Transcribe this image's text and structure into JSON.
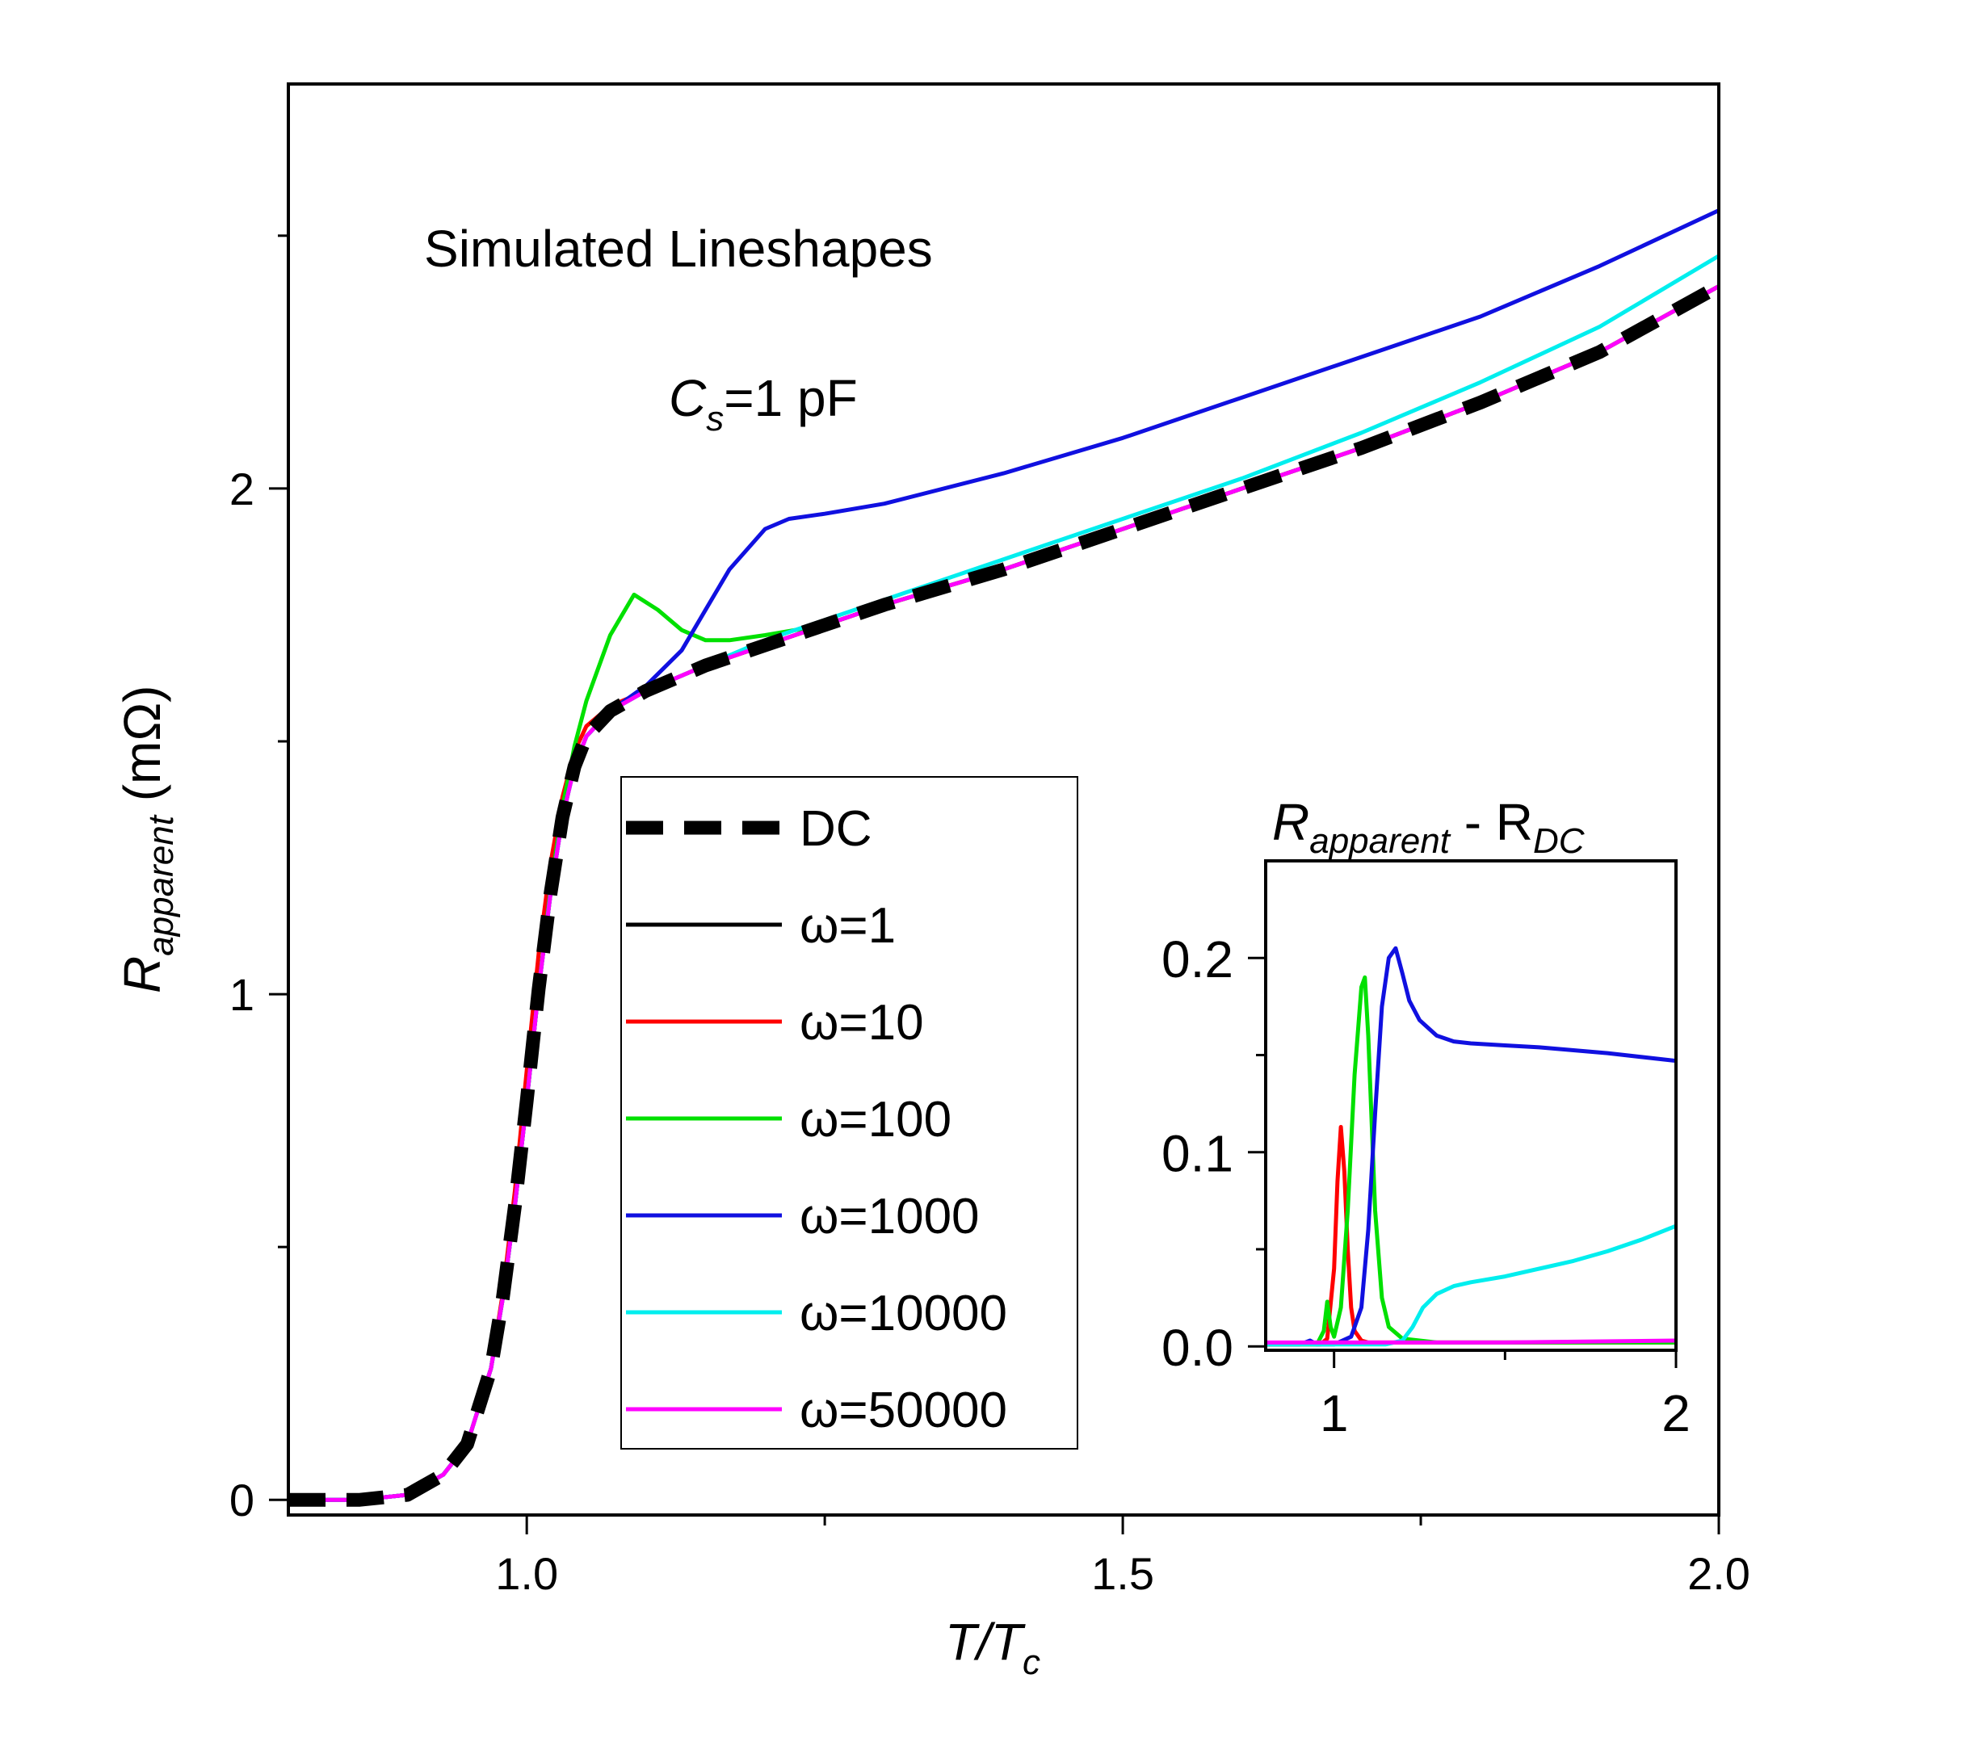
{
  "chart_data": [
    {
      "type": "line",
      "title": "Simulated Lineshapes",
      "annotation_base": "C",
      "annotation_sub": "s",
      "annotation_rest": "=1 pF",
      "xlabel_main": "T/T",
      "xlabel_sub": "c",
      "ylabel_main": "R",
      "ylabel_sub": "apparent",
      "ylabel_unit": " (mΩ)",
      "xlim": [
        0.8,
        2.0
      ],
      "ylim": [
        -0.03,
        2.8
      ],
      "x_ticks": [
        1.0,
        1.5,
        2.0
      ],
      "x_tick_labels": [
        "1.0",
        "1.5",
        "2.0"
      ],
      "y_ticks": [
        0,
        1,
        2
      ],
      "y_tick_labels": [
        "0",
        "1",
        "2"
      ],
      "legend_position": "center",
      "series": [
        {
          "name": "DC",
          "label": "DC",
          "color": "#000000",
          "style": "dashed",
          "x": [
            0.8,
            0.86,
            0.9,
            0.93,
            0.95,
            0.97,
            0.98,
            0.99,
            1.0,
            1.01,
            1.02,
            1.03,
            1.04,
            1.05,
            1.07,
            1.1,
            1.15,
            1.2,
            1.3,
            1.4,
            1.5,
            1.6,
            1.7,
            1.8,
            1.9,
            2.0
          ],
          "y": [
            0.0,
            0.0,
            0.01,
            0.05,
            0.11,
            0.26,
            0.4,
            0.58,
            0.79,
            1.01,
            1.2,
            1.35,
            1.45,
            1.51,
            1.56,
            1.6,
            1.65,
            1.69,
            1.77,
            1.84,
            1.92,
            2.0,
            2.08,
            2.17,
            2.27,
            2.4
          ]
        },
        {
          "name": "ω=1",
          "label": "ω=1",
          "color": "#000000",
          "style": "solid",
          "x": [
            0.8,
            0.86,
            0.9,
            0.93,
            0.95,
            0.97,
            0.98,
            0.99,
            1.0,
            1.01,
            1.02,
            1.03,
            1.04,
            1.05,
            1.07,
            1.1,
            1.15,
            1.2,
            1.3,
            1.4,
            1.5,
            1.6,
            1.7,
            1.8,
            1.9,
            2.0
          ],
          "y": [
            0.0,
            0.0,
            0.01,
            0.05,
            0.11,
            0.26,
            0.4,
            0.58,
            0.79,
            1.01,
            1.2,
            1.35,
            1.45,
            1.51,
            1.56,
            1.6,
            1.65,
            1.69,
            1.77,
            1.84,
            1.92,
            2.0,
            2.08,
            2.17,
            2.27,
            2.4
          ]
        },
        {
          "name": "ω=10",
          "label": "ω=10",
          "color": "#ff0000",
          "style": "solid",
          "x": [
            0.8,
            0.86,
            0.9,
            0.93,
            0.95,
            0.97,
            0.98,
            0.99,
            1.0,
            1.01,
            1.02,
            1.03,
            1.04,
            1.05,
            1.07,
            1.1,
            1.15,
            1.2,
            1.3,
            1.4,
            1.5,
            1.6,
            1.7,
            1.8,
            1.9,
            2.0
          ],
          "y": [
            0.0,
            0.0,
            0.01,
            0.05,
            0.11,
            0.26,
            0.41,
            0.61,
            0.85,
            1.08,
            1.26,
            1.39,
            1.48,
            1.53,
            1.57,
            1.6,
            1.65,
            1.69,
            1.77,
            1.84,
            1.92,
            2.0,
            2.08,
            2.17,
            2.27,
            2.4
          ]
        },
        {
          "name": "ω=100",
          "label": "ω=100",
          "color": "#00e000",
          "style": "solid",
          "x": [
            0.8,
            0.86,
            0.9,
            0.93,
            0.95,
            0.97,
            0.98,
            0.99,
            1.0,
            1.01,
            1.02,
            1.03,
            1.04,
            1.05,
            1.07,
            1.09,
            1.11,
            1.13,
            1.15,
            1.17,
            1.2,
            1.25,
            1.3,
            1.4,
            1.5,
            1.6,
            1.7,
            1.8,
            1.9,
            2.0
          ],
          "y": [
            0.0,
            0.0,
            0.01,
            0.05,
            0.11,
            0.26,
            0.4,
            0.58,
            0.79,
            1.01,
            1.21,
            1.37,
            1.49,
            1.58,
            1.71,
            1.79,
            1.76,
            1.72,
            1.7,
            1.7,
            1.71,
            1.73,
            1.77,
            1.84,
            1.92,
            2.0,
            2.08,
            2.17,
            2.27,
            2.4
          ]
        },
        {
          "name": "ω=1000",
          "label": "ω=1000",
          "color": "#1010e0",
          "style": "solid",
          "x": [
            0.8,
            0.86,
            0.9,
            0.93,
            0.95,
            0.97,
            0.98,
            0.99,
            1.0,
            1.01,
            1.02,
            1.03,
            1.04,
            1.05,
            1.07,
            1.1,
            1.13,
            1.15,
            1.17,
            1.2,
            1.22,
            1.25,
            1.3,
            1.4,
            1.5,
            1.6,
            1.7,
            1.8,
            1.9,
            2.0
          ],
          "y": [
            0.0,
            0.0,
            0.01,
            0.05,
            0.11,
            0.26,
            0.4,
            0.58,
            0.79,
            1.01,
            1.2,
            1.35,
            1.45,
            1.51,
            1.56,
            1.61,
            1.68,
            1.76,
            1.84,
            1.92,
            1.94,
            1.95,
            1.97,
            2.03,
            2.1,
            2.18,
            2.26,
            2.34,
            2.44,
            2.55
          ]
        },
        {
          "name": "ω=10000",
          "label": "ω=10000",
          "color": "#00eeee",
          "style": "solid",
          "x": [
            0.8,
            0.86,
            0.9,
            0.93,
            0.95,
            0.97,
            0.98,
            0.99,
            1.0,
            1.01,
            1.02,
            1.03,
            1.04,
            1.05,
            1.07,
            1.1,
            1.15,
            1.2,
            1.3,
            1.4,
            1.5,
            1.6,
            1.7,
            1.8,
            1.9,
            2.0
          ],
          "y": [
            0.0,
            0.0,
            0.01,
            0.05,
            0.11,
            0.26,
            0.4,
            0.58,
            0.79,
            1.01,
            1.2,
            1.35,
            1.45,
            1.51,
            1.56,
            1.6,
            1.65,
            1.7,
            1.78,
            1.86,
            1.94,
            2.02,
            2.11,
            2.21,
            2.32,
            2.46
          ]
        },
        {
          "name": "ω=50000",
          "label": "ω=50000",
          "color": "#ff00ff",
          "style": "solid",
          "x": [
            0.8,
            0.86,
            0.9,
            0.93,
            0.95,
            0.97,
            0.98,
            0.99,
            1.0,
            1.01,
            1.02,
            1.03,
            1.04,
            1.05,
            1.07,
            1.1,
            1.15,
            1.2,
            1.3,
            1.4,
            1.5,
            1.6,
            1.7,
            1.8,
            1.9,
            2.0
          ],
          "y": [
            0.0,
            0.0,
            0.01,
            0.05,
            0.11,
            0.26,
            0.4,
            0.58,
            0.79,
            1.01,
            1.2,
            1.35,
            1.45,
            1.51,
            1.56,
            1.6,
            1.65,
            1.69,
            1.77,
            1.84,
            1.92,
            2.0,
            2.08,
            2.17,
            2.27,
            2.4
          ]
        }
      ]
    },
    {
      "type": "line",
      "title_main": "R",
      "title_sub1": "apparent",
      "title_mid": " - R",
      "title_sub2": "DC",
      "xlim": [
        0.8,
        2.0
      ],
      "ylim": [
        -0.002,
        0.25
      ],
      "x_ticks": [
        1,
        2
      ],
      "x_tick_labels": [
        "1",
        "2"
      ],
      "y_ticks": [
        0.0,
        0.1,
        0.2
      ],
      "y_tick_labels": [
        "0.0",
        "0.1",
        "0.2"
      ],
      "series": [
        {
          "name": "ω=10",
          "color": "#ff0000",
          "x": [
            0.8,
            0.96,
            0.98,
            1.0,
            1.01,
            1.02,
            1.03,
            1.04,
            1.05,
            1.06,
            1.08,
            1.1,
            2.0
          ],
          "y": [
            0.001,
            0.001,
            0.004,
            0.04,
            0.085,
            0.113,
            0.09,
            0.05,
            0.02,
            0.008,
            0.003,
            0.002,
            0.002
          ]
        },
        {
          "name": "ω=100",
          "color": "#00e000",
          "x": [
            0.8,
            0.95,
            0.97,
            0.98,
            0.99,
            1.0,
            1.02,
            1.04,
            1.06,
            1.08,
            1.09,
            1.1,
            1.12,
            1.14,
            1.16,
            1.2,
            1.3,
            1.5,
            2.0
          ],
          "y": [
            0.001,
            0.001,
            0.008,
            0.023,
            0.01,
            0.005,
            0.02,
            0.07,
            0.14,
            0.185,
            0.19,
            0.16,
            0.07,
            0.025,
            0.01,
            0.004,
            0.002,
            0.002,
            0.002
          ]
        },
        {
          "name": "ω=1000",
          "color": "#1010e0",
          "x": [
            0.8,
            0.9,
            0.93,
            0.95,
            0.97,
            1.0,
            1.05,
            1.08,
            1.1,
            1.12,
            1.14,
            1.16,
            1.18,
            1.2,
            1.22,
            1.25,
            1.3,
            1.35,
            1.4,
            1.5,
            1.6,
            1.8,
            2.0
          ],
          "y": [
            0.001,
            0.001,
            0.003,
            0.001,
            0.001,
            0.001,
            0.005,
            0.02,
            0.06,
            0.12,
            0.175,
            0.2,
            0.205,
            0.192,
            0.178,
            0.168,
            0.16,
            0.157,
            0.156,
            0.155,
            0.154,
            0.151,
            0.147
          ]
        },
        {
          "name": "ω=10000",
          "color": "#00eeee",
          "x": [
            0.8,
            1.15,
            1.2,
            1.23,
            1.26,
            1.3,
            1.35,
            1.4,
            1.5,
            1.6,
            1.7,
            1.8,
            1.9,
            2.0
          ],
          "y": [
            0.001,
            0.001,
            0.003,
            0.01,
            0.02,
            0.027,
            0.031,
            0.033,
            0.036,
            0.04,
            0.044,
            0.049,
            0.055,
            0.062
          ]
        },
        {
          "name": "ω=50000",
          "color": "#ff00ff",
          "x": [
            0.8,
            1.2,
            1.5,
            2.0
          ],
          "y": [
            0.002,
            0.002,
            0.002,
            0.003
          ]
        }
      ]
    }
  ]
}
